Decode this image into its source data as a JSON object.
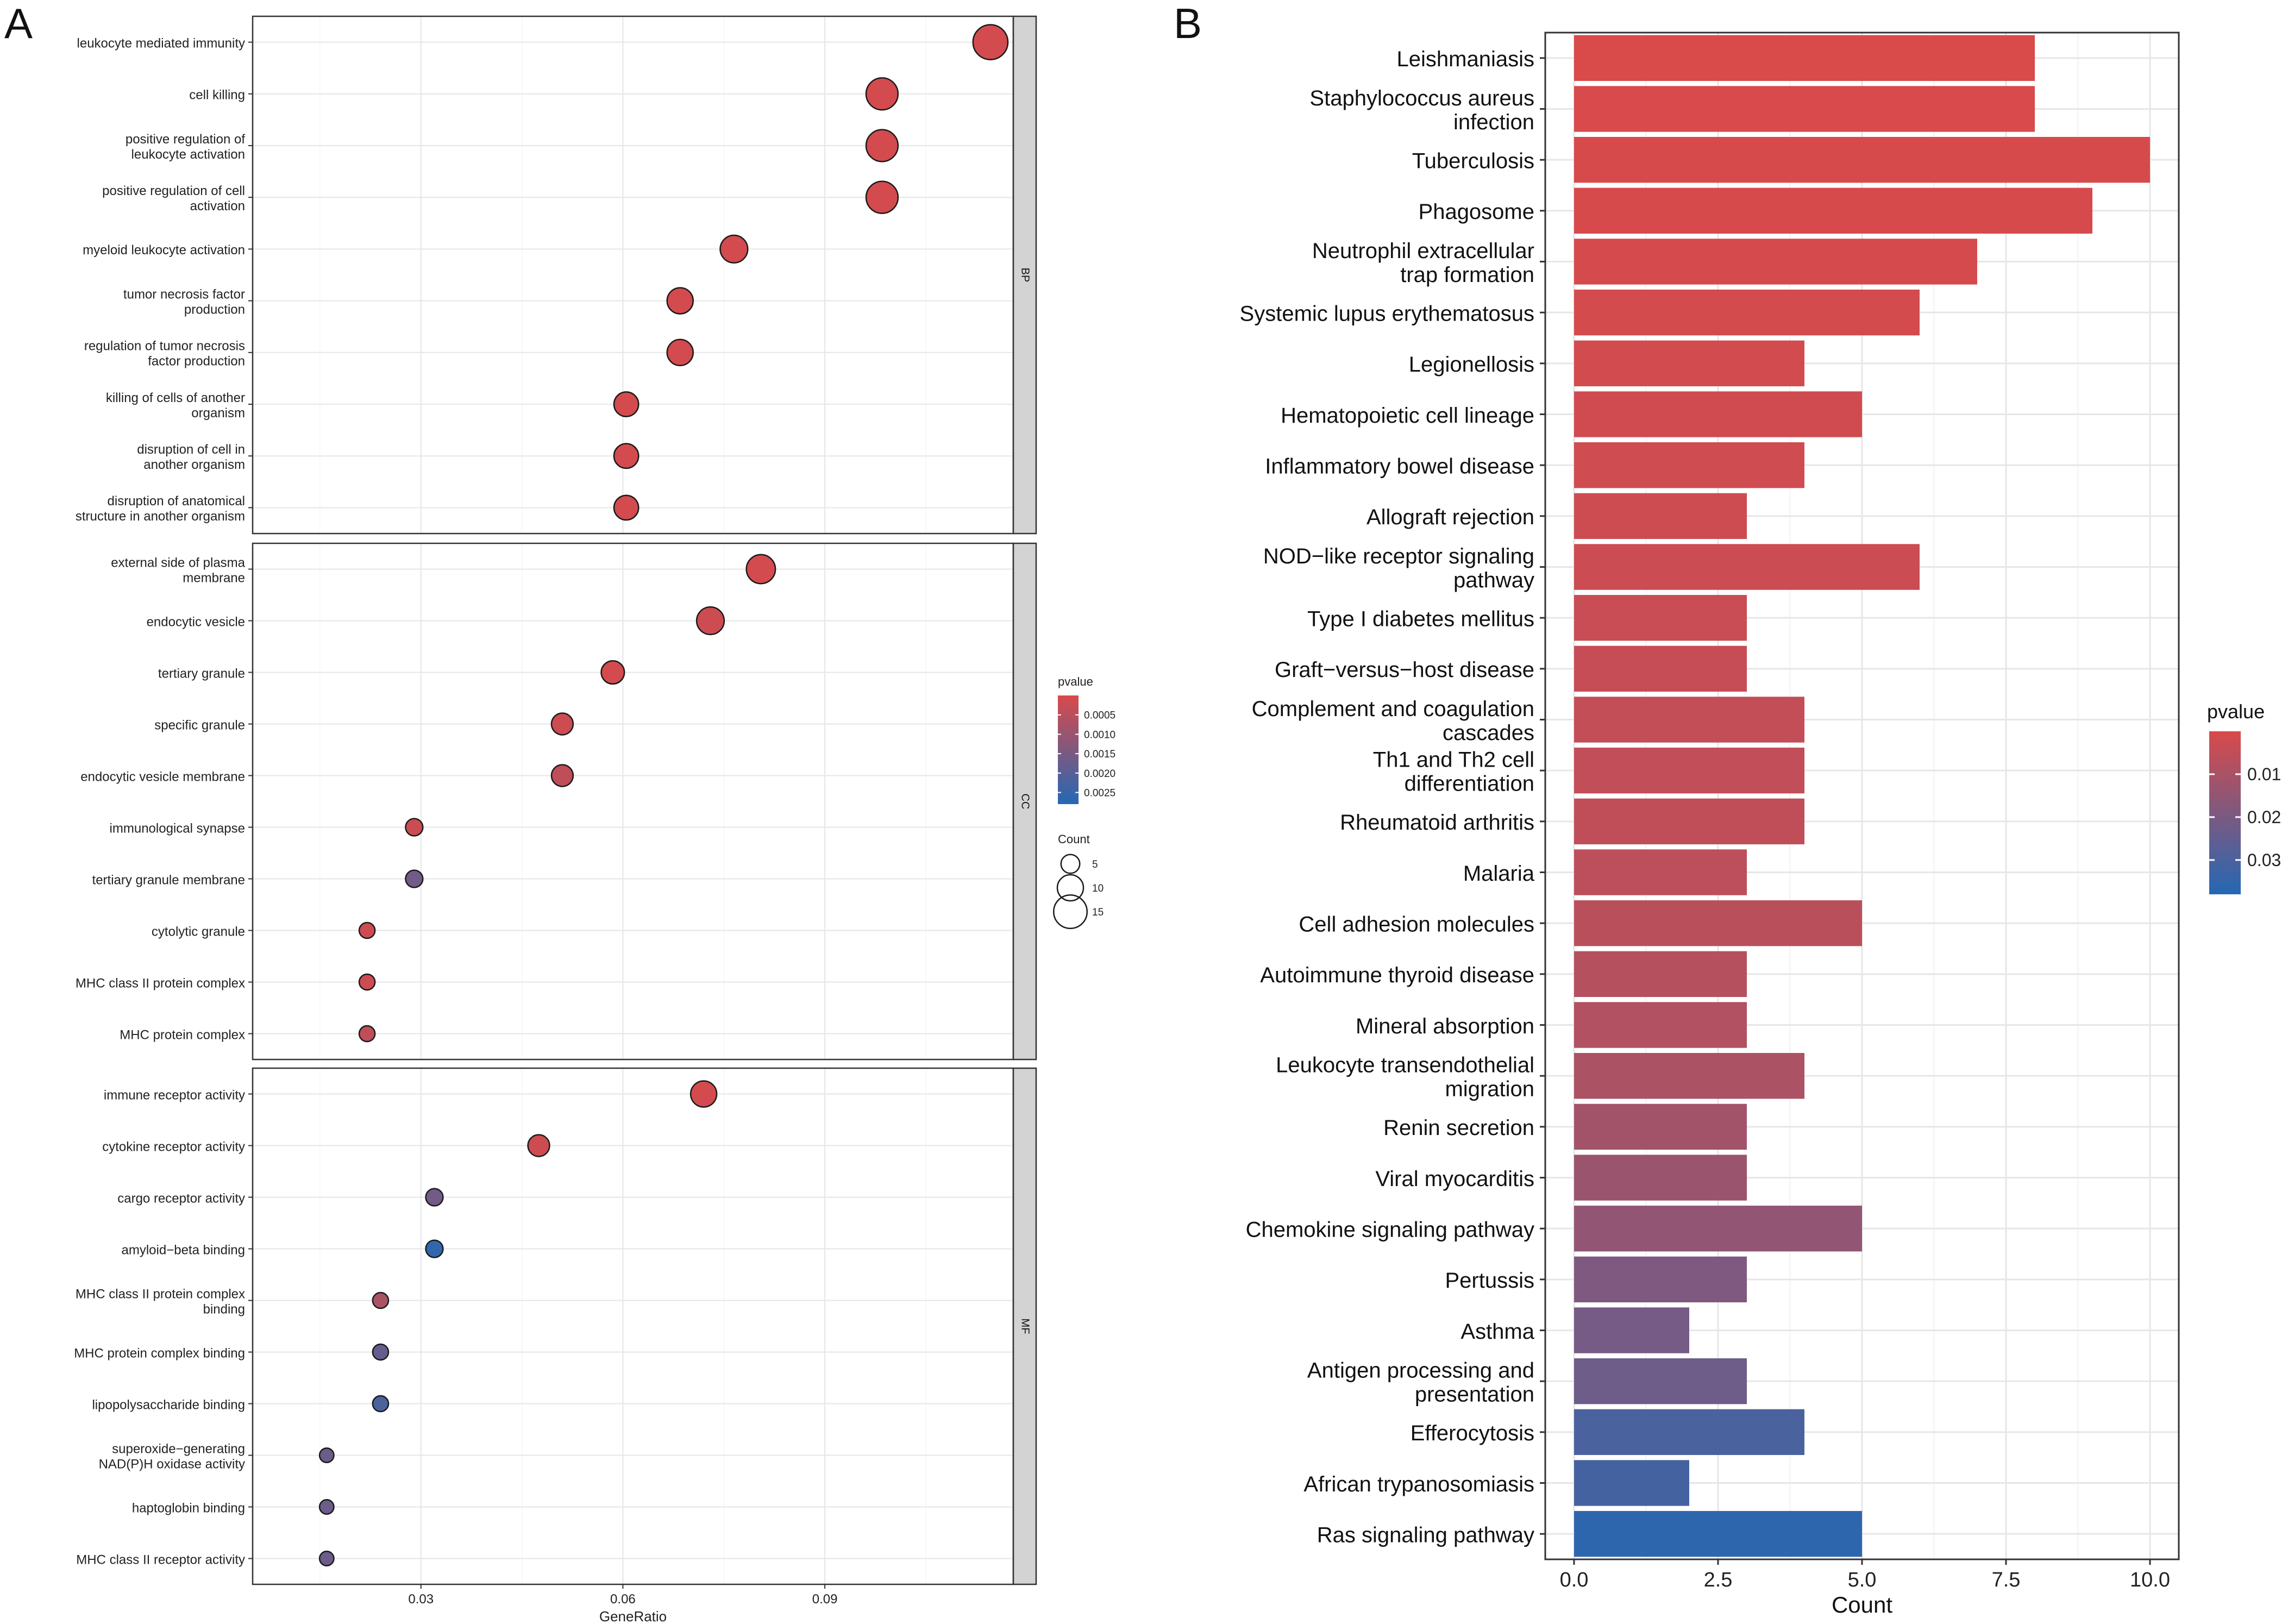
{
  "panel_labels": {
    "a": "A",
    "b": "B"
  },
  "colors": {
    "low_p": "#D94A4A",
    "high_p": "#2468B4",
    "grid": "#E6E6E6",
    "strip": "#D3D3D3"
  },
  "chart_data": [
    {
      "type": "scatter",
      "panel": "A",
      "xlabel": "GeneRatio",
      "xlim": [
        0.005,
        0.118
      ],
      "xticks": [
        0.03,
        0.06,
        0.09
      ],
      "xtick_labels": [
        "0.03",
        "0.06",
        "0.09"
      ],
      "color_legend": {
        "title": "pvalue",
        "range": [
          0.0,
          0.0028
        ],
        "ticks": [
          0.0005,
          0.001,
          0.0015,
          0.002,
          0.0025
        ],
        "tick_labels": [
          "0.0005",
          "0.0010",
          "0.0015",
          "0.0020",
          "0.0025"
        ]
      },
      "size_legend": {
        "title": "Count",
        "values": [
          5,
          10,
          15
        ],
        "labels": [
          "5",
          "10",
          "15"
        ]
      },
      "facets": [
        {
          "name": "BP",
          "terms": [
            {
              "label": [
                "leukocyte mediated immunity"
              ],
              "x": 0.1146,
              "count": 16,
              "p": 0.0001
            },
            {
              "label": [
                "cell killing"
              ],
              "x": 0.0985,
              "count": 14,
              "p": 0.0001
            },
            {
              "label": [
                "positive regulation of",
                "leukocyte activation"
              ],
              "x": 0.0985,
              "count": 14,
              "p": 0.0001
            },
            {
              "label": [
                "positive regulation of cell",
                "activation"
              ],
              "x": 0.0985,
              "count": 14,
              "p": 0.0001
            },
            {
              "label": [
                "myeloid leukocyte activation"
              ],
              "x": 0.0765,
              "count": 11,
              "p": 0.0001
            },
            {
              "label": [
                "tumor necrosis factor",
                "production"
              ],
              "x": 0.0685,
              "count": 10,
              "p": 0.0001
            },
            {
              "label": [
                "regulation of tumor necrosis",
                "factor production"
              ],
              "x": 0.0685,
              "count": 10,
              "p": 0.0001
            },
            {
              "label": [
                "killing of cells of another",
                "organism"
              ],
              "x": 0.0605,
              "count": 9,
              "p": 0.0001
            },
            {
              "label": [
                "disruption of cell in",
                "another organism"
              ],
              "x": 0.0605,
              "count": 9,
              "p": 0.0001
            },
            {
              "label": [
                "disruption of anatomical",
                "structure in another organism"
              ],
              "x": 0.0605,
              "count": 9,
              "p": 0.0001
            }
          ]
        },
        {
          "name": "CC",
          "terms": [
            {
              "label": [
                "external side of plasma",
                "membrane"
              ],
              "x": 0.0805,
              "count": 12,
              "p": 0.0001
            },
            {
              "label": [
                "endocytic vesicle"
              ],
              "x": 0.073,
              "count": 11,
              "p": 0.0002
            },
            {
              "label": [
                "tertiary granule"
              ],
              "x": 0.0585,
              "count": 8,
              "p": 0.0001
            },
            {
              "label": [
                "specific granule"
              ],
              "x": 0.051,
              "count": 7,
              "p": 0.0002
            },
            {
              "label": [
                "endocytic vesicle membrane"
              ],
              "x": 0.051,
              "count": 7,
              "p": 0.0004
            },
            {
              "label": [
                "immunological synapse"
              ],
              "x": 0.029,
              "count": 4,
              "p": 0.0002
            },
            {
              "label": [
                "tertiary granule membrane"
              ],
              "x": 0.029,
              "count": 4,
              "p": 0.0016
            },
            {
              "label": [
                "cytolytic granule"
              ],
              "x": 0.022,
              "count": 3,
              "p": 0.0002
            },
            {
              "label": [
                "MHC class II protein complex"
              ],
              "x": 0.022,
              "count": 3,
              "p": 0.0002
            },
            {
              "label": [
                "MHC protein complex"
              ],
              "x": 0.022,
              "count": 3,
              "p": 0.0004
            }
          ]
        },
        {
          "name": "MF",
          "terms": [
            {
              "label": [
                "immune receptor activity"
              ],
              "x": 0.072,
              "count": 10,
              "p": 0.0001
            },
            {
              "label": [
                "cytokine receptor activity"
              ],
              "x": 0.0475,
              "count": 7,
              "p": 0.0002
            },
            {
              "label": [
                "cargo receptor activity"
              ],
              "x": 0.032,
              "count": 4,
              "p": 0.0016
            },
            {
              "label": [
                "amyloid−beta binding"
              ],
              "x": 0.032,
              "count": 4,
              "p": 0.0026
            },
            {
              "label": [
                "MHC class II protein complex",
                "binding"
              ],
              "x": 0.024,
              "count": 3,
              "p": 0.0007
            },
            {
              "label": [
                "MHC protein complex binding"
              ],
              "x": 0.024,
              "count": 3,
              "p": 0.0018
            },
            {
              "label": [
                "lipopolysaccharide binding"
              ],
              "x": 0.024,
              "count": 3,
              "p": 0.0022
            },
            {
              "label": [
                "superoxide−generating",
                "NAD(P)H oxidase activity"
              ],
              "x": 0.016,
              "count": 2,
              "p": 0.0017
            },
            {
              "label": [
                "haptoglobin binding"
              ],
              "x": 0.016,
              "count": 2,
              "p": 0.0017
            },
            {
              "label": [
                "MHC class II receptor activity"
              ],
              "x": 0.016,
              "count": 2,
              "p": 0.0017
            }
          ]
        }
      ]
    },
    {
      "type": "bar",
      "panel": "B",
      "orientation": "horizontal",
      "xlabel": "Count",
      "xlim": [
        -0.5,
        10.5
      ],
      "xticks": [
        0.0,
        2.5,
        5.0,
        7.5,
        10.0
      ],
      "xtick_labels": [
        "0.0",
        "2.5",
        "5.0",
        "7.5",
        "10.0"
      ],
      "color_legend": {
        "title": "pvalue",
        "range": [
          0.0,
          0.038
        ],
        "ticks": [
          0.01,
          0.02,
          0.03
        ],
        "tick_labels": [
          "0.01",
          "0.02",
          "0.03"
        ]
      },
      "bars": [
        {
          "label": [
            "Leishmaniasis"
          ],
          "value": 8,
          "p": 0.0001
        },
        {
          "label": [
            "Staphylococcus aureus",
            "infection"
          ],
          "value": 8,
          "p": 0.0002
        },
        {
          "label": [
            "Tuberculosis"
          ],
          "value": 10,
          "p": 0.0004
        },
        {
          "label": [
            "Phagosome"
          ],
          "value": 9,
          "p": 0.0006
        },
        {
          "label": [
            "Neutrophil extracellular",
            "trap formation"
          ],
          "value": 7,
          "p": 0.0009
        },
        {
          "label": [
            "Systemic lupus erythematosus"
          ],
          "value": 6,
          "p": 0.0012
        },
        {
          "label": [
            "Legionellosis"
          ],
          "value": 4,
          "p": 0.0015
        },
        {
          "label": [
            "Hematopoietic cell lineage"
          ],
          "value": 5,
          "p": 0.0018
        },
        {
          "label": [
            "Inflammatory bowel disease"
          ],
          "value": 4,
          "p": 0.0022
        },
        {
          "label": [
            "Allograft rejection"
          ],
          "value": 3,
          "p": 0.0026
        },
        {
          "label": [
            "NOD−like receptor signaling",
            "pathway"
          ],
          "value": 6,
          "p": 0.003
        },
        {
          "label": [
            "Type I diabetes mellitus"
          ],
          "value": 3,
          "p": 0.0036
        },
        {
          "label": [
            "Graft−versus−host disease"
          ],
          "value": 3,
          "p": 0.004
        },
        {
          "label": [
            "Complement and coagulation",
            "cascades"
          ],
          "value": 4,
          "p": 0.0046
        },
        {
          "label": [
            "Th1 and Th2 cell",
            "differentiation"
          ],
          "value": 4,
          "p": 0.005
        },
        {
          "label": [
            "Rheumatoid arthritis"
          ],
          "value": 4,
          "p": 0.0055
        },
        {
          "label": [
            "Malaria"
          ],
          "value": 3,
          "p": 0.006
        },
        {
          "label": [
            "Cell adhesion molecules"
          ],
          "value": 5,
          "p": 0.0066
        },
        {
          "label": [
            "Autoimmune thyroid disease"
          ],
          "value": 3,
          "p": 0.0075
        },
        {
          "label": [
            "Mineral absorption"
          ],
          "value": 3,
          "p": 0.0085
        },
        {
          "label": [
            "Leukocyte transendothelial",
            "migration"
          ],
          "value": 4,
          "p": 0.0095
        },
        {
          "label": [
            "Renin secretion"
          ],
          "value": 3,
          "p": 0.0115
        },
        {
          "label": [
            "Viral myocarditis"
          ],
          "value": 3,
          "p": 0.013
        },
        {
          "label": [
            "Chemokine signaling pathway"
          ],
          "value": 5,
          "p": 0.015
        },
        {
          "label": [
            "Pertussis"
          ],
          "value": 3,
          "p": 0.019
        },
        {
          "label": [
            "Asthma"
          ],
          "value": 2,
          "p": 0.021
        },
        {
          "label": [
            "Antigen processing and",
            "presentation"
          ],
          "value": 3,
          "p": 0.0225
        },
        {
          "label": [
            "Efferocytosis"
          ],
          "value": 4,
          "p": 0.03
        },
        {
          "label": [
            "African trypanosomiasis"
          ],
          "value": 2,
          "p": 0.031
        },
        {
          "label": [
            "Ras signaling pathway"
          ],
          "value": 5,
          "p": 0.036
        }
      ]
    }
  ]
}
